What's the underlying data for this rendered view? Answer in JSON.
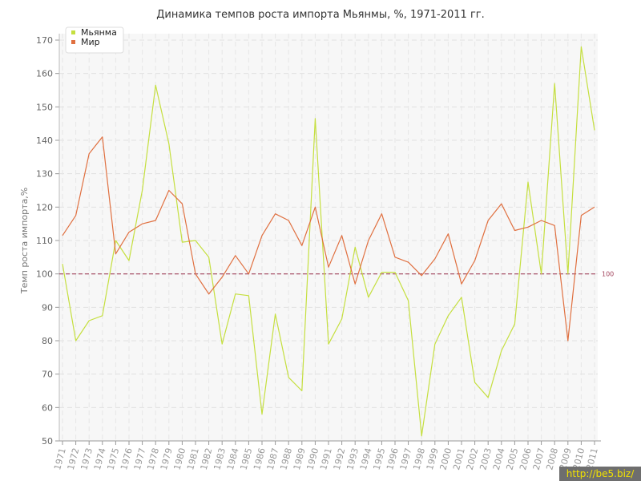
{
  "chart_data": {
    "type": "line",
    "title": "Динамика темпов роста импорта Мьянмы, %, 1971-2011 гг.",
    "ylabel": "Темп роста импорта,%",
    "xlabel": "",
    "ylim": [
      50,
      170
    ],
    "yticks": [
      50,
      60,
      70,
      80,
      90,
      100,
      110,
      120,
      130,
      140,
      150,
      160,
      170
    ],
    "grid": true,
    "legend": "top-left",
    "x": [
      "1971",
      "1972",
      "1973",
      "1974",
      "1975",
      "1976",
      "1977",
      "1978",
      "1979",
      "1980",
      "1981",
      "1982",
      "1983",
      "1984",
      "1985",
      "1986",
      "1987",
      "1988",
      "1989",
      "1990",
      "1991",
      "1992",
      "1993",
      "1994",
      "1995",
      "1996",
      "1997",
      "1998",
      "1999",
      "2000",
      "2001",
      "2002",
      "2003",
      "2004",
      "2005",
      "2006",
      "2007",
      "2008",
      "2009",
      "2010",
      "2011"
    ],
    "series": [
      {
        "name": "Мьянма",
        "color": "#c5df3f",
        "values": [
          103,
          80,
          86,
          87.5,
          110,
          104,
          125,
          156.5,
          139,
          109.5,
          110,
          105,
          79,
          94,
          93.5,
          58,
          88,
          69,
          65,
          146.5,
          79,
          86.5,
          108,
          93,
          100.5,
          100.5,
          92,
          51.5,
          79,
          87.5,
          93,
          67.5,
          63,
          77,
          85,
          127.5,
          100,
          157,
          100,
          168,
          143
        ]
      },
      {
        "name": "Мир",
        "color": "#e07040",
        "values": [
          111.5,
          117.5,
          136,
          141,
          106,
          112.5,
          115,
          116,
          125,
          121,
          100,
          94,
          99,
          105.5,
          100,
          111.5,
          118,
          116,
          108.5,
          120,
          102,
          111.5,
          97,
          110,
          118,
          105,
          103.5,
          99.5,
          104.5,
          112,
          97,
          104,
          116,
          121,
          113,
          114,
          116,
          114.5,
          80,
          117.5,
          120
        ]
      }
    ],
    "reference_line": {
      "value": 100,
      "label": "100",
      "color": "#a0405a"
    }
  },
  "watermark": {
    "text": "http://be5.biz/"
  }
}
